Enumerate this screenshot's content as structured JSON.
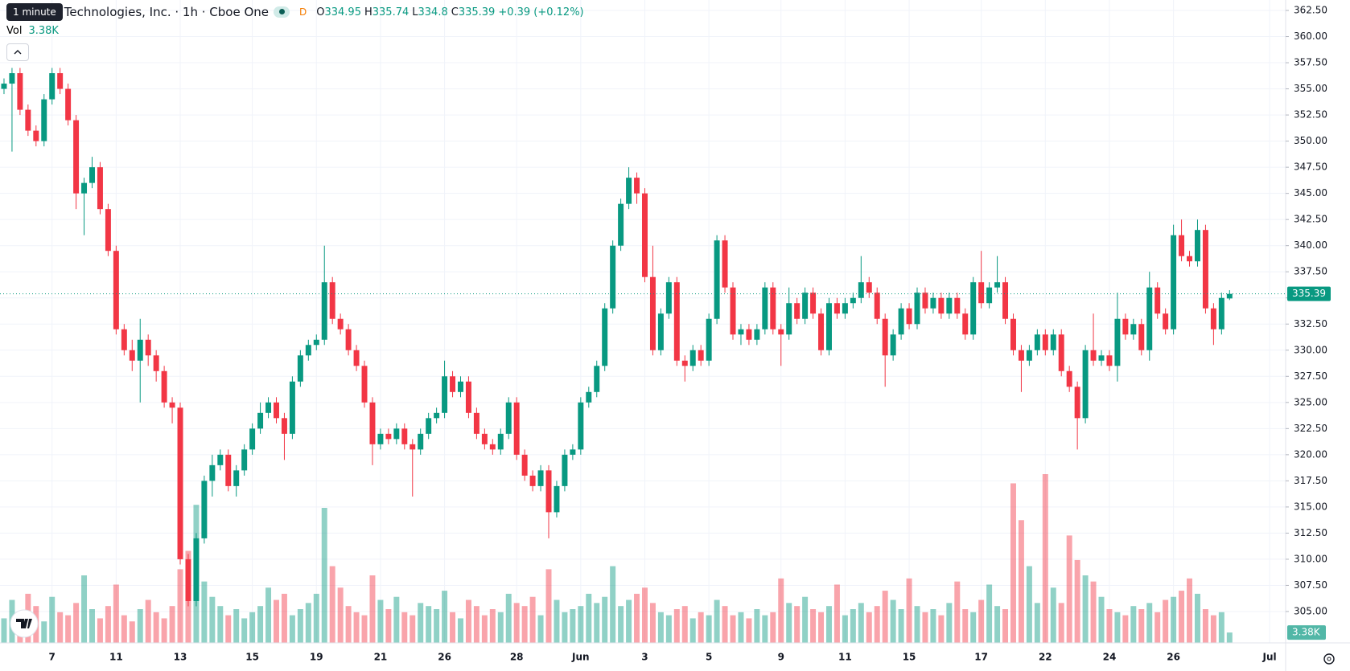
{
  "chart_data": {
    "type": "candlestick",
    "tooltip": "1 minute",
    "title": "Technologies, Inc. · 1h · Cboe One",
    "flag": "D",
    "ohlc_labels": [
      "O",
      "H",
      "L",
      "C"
    ],
    "change": "+0.39 (+0.12%)",
    "volume_name": "Vol",
    "last_volume_label": "3.38K",
    "up_color": "#089981",
    "down_color": "#f23645",
    "grid": true,
    "xlim": [
      -0.5,
      160
    ],
    "ylim": [
      302,
      363.5
    ],
    "xticks": [
      {
        "value": 6,
        "label": "7"
      },
      {
        "value": 14,
        "label": "11"
      },
      {
        "value": 22,
        "label": "13"
      },
      {
        "value": 31,
        "label": "15"
      },
      {
        "value": 39,
        "label": "19"
      },
      {
        "value": 47,
        "label": "21"
      },
      {
        "value": 55,
        "label": "26"
      },
      {
        "value": 64,
        "label": "28"
      },
      {
        "value": 72,
        "label": "Jun"
      },
      {
        "value": 80,
        "label": "3"
      },
      {
        "value": 88,
        "label": "5"
      },
      {
        "value": 97,
        "label": "9"
      },
      {
        "value": 105,
        "label": "11"
      },
      {
        "value": 113,
        "label": "15"
      },
      {
        "value": 122,
        "label": "17"
      },
      {
        "value": 130,
        "label": "22"
      },
      {
        "value": 138,
        "label": "24"
      },
      {
        "value": 146,
        "label": "26"
      },
      {
        "value": 158,
        "label": "Jul"
      }
    ],
    "yticks": [
      {
        "value": 305,
        "label": "305.00"
      },
      {
        "value": 307.5,
        "label": "307.50"
      },
      {
        "value": 310,
        "label": "310.00"
      },
      {
        "value": 312.5,
        "label": "312.50"
      },
      {
        "value": 315,
        "label": "315.00"
      },
      {
        "value": 317.5,
        "label": "317.50"
      },
      {
        "value": 320,
        "label": "320.00"
      },
      {
        "value": 322.5,
        "label": "322.50"
      },
      {
        "value": 325,
        "label": "325.00"
      },
      {
        "value": 327.5,
        "label": "327.50"
      },
      {
        "value": 330,
        "label": "330.00"
      },
      {
        "value": 332.5,
        "label": "332.50"
      },
      {
        "value": 335,
        "label": "335.00"
      },
      {
        "value": 337.5,
        "label": "337.50"
      },
      {
        "value": 340,
        "label": "340.00"
      },
      {
        "value": 342.5,
        "label": "342.50"
      },
      {
        "value": 345,
        "label": "345.00"
      },
      {
        "value": 347.5,
        "label": "347.50"
      },
      {
        "value": 350,
        "label": "350.00"
      },
      {
        "value": 352.5,
        "label": "352.50"
      },
      {
        "value": 355,
        "label": "355.00"
      },
      {
        "value": 357.5,
        "label": "357.50"
      },
      {
        "value": 360,
        "label": "360.00"
      },
      {
        "value": 362.5,
        "label": "362.50"
      }
    ],
    "open": [
      355,
      355.5,
      356.5,
      353,
      351,
      350,
      354,
      356.5,
      355,
      352,
      345,
      346,
      347.5,
      343.5,
      339.5,
      332,
      330,
      329,
      331,
      329.5,
      328,
      325,
      324.5,
      310,
      306,
      312,
      317.5,
      319,
      320,
      317,
      318.5,
      320.5,
      322.5,
      324,
      325,
      323.5,
      322,
      327,
      329.5,
      330.5,
      331,
      336.5,
      333,
      332,
      330,
      328.5,
      325,
      321,
      322,
      321.5,
      322.5,
      321,
      320.5,
      322,
      323.5,
      324,
      327.5,
      326,
      327,
      324,
      322,
      321,
      320.5,
      322,
      325,
      320,
      318,
      317,
      318.5,
      314.5,
      317,
      320,
      320.5,
      325,
      326,
      328.5,
      334,
      340,
      344,
      346.5,
      345,
      337,
      330,
      333.5,
      336.5,
      329,
      328.5,
      330,
      329,
      333,
      340.5,
      336,
      331.5,
      332,
      331,
      332,
      336,
      332,
      331.5,
      334.5,
      333,
      335.5,
      333.5,
      330,
      334.5,
      333.5,
      334.5,
      335,
      336.5,
      335.5,
      333,
      329.5,
      331.5,
      334,
      332.5,
      335.5,
      334,
      335,
      333.5,
      335,
      333.5,
      331.5,
      336.5,
      334.5,
      336,
      336.5,
      333,
      330,
      329,
      330,
      331.5,
      330,
      331.5,
      328,
      326.5,
      323.5,
      330,
      329,
      329.5,
      328.5,
      333,
      331.5,
      332.5,
      330,
      336,
      333.5,
      332,
      341,
      339,
      338.5,
      341.5,
      334,
      332,
      334.95
    ],
    "high": [
      356,
      357,
      357,
      353.5,
      351.5,
      354.5,
      357,
      357,
      355.5,
      352.5,
      346.5,
      348.5,
      348,
      344,
      340,
      332.5,
      331,
      333,
      331.5,
      330,
      328.5,
      325.5,
      325,
      310.5,
      312.5,
      318,
      320,
      320.5,
      320.5,
      319,
      321,
      323,
      325,
      325.5,
      325.5,
      324,
      327.5,
      330,
      331,
      331.5,
      340,
      337,
      333.5,
      332.5,
      330.5,
      329,
      325.5,
      322.5,
      322.5,
      323,
      323,
      321.5,
      322.5,
      324,
      324.5,
      329,
      328,
      327.5,
      327.5,
      324.5,
      322.5,
      321.5,
      322.5,
      325.5,
      325.5,
      320.5,
      318.5,
      319,
      319,
      317.5,
      320.5,
      321,
      325.5,
      326.5,
      329,
      334.5,
      340.5,
      344.5,
      347.5,
      347,
      345.5,
      340,
      334,
      337,
      337,
      329.5,
      330.5,
      330.5,
      333.5,
      341,
      341,
      336.5,
      332.5,
      332.5,
      332.5,
      336.5,
      336.5,
      332.5,
      336,
      335,
      336,
      336,
      334,
      335,
      335,
      335,
      335.5,
      339,
      337,
      336,
      333.5,
      332,
      334.5,
      334.5,
      336,
      336,
      335.5,
      335.5,
      335.5,
      335.5,
      334,
      337,
      339.5,
      336.5,
      339,
      337,
      333.5,
      330.5,
      330.5,
      332,
      332,
      332,
      332,
      328.5,
      327,
      330.5,
      333.5,
      330,
      330,
      335.5,
      333.5,
      333,
      333,
      337.5,
      336.5,
      334,
      342,
      342.5,
      339.5,
      342.5,
      342,
      334.5,
      335.5,
      335.74
    ],
    "low": [
      354.5,
      349,
      352.5,
      350.5,
      349.5,
      349.5,
      353.5,
      354.5,
      351.5,
      343.5,
      341,
      345.5,
      343,
      339,
      331.5,
      329.5,
      328,
      325,
      328.5,
      327,
      324.5,
      323,
      309.5,
      305.5,
      305.5,
      311.5,
      316,
      318.5,
      316.5,
      316,
      318,
      320,
      322,
      323.5,
      323,
      319.5,
      321.5,
      326.5,
      329,
      330,
      330.5,
      332.5,
      331.5,
      329.5,
      328,
      324.5,
      319,
      320.5,
      321,
      321,
      320.5,
      316,
      320,
      321.5,
      323,
      323.5,
      325.5,
      325.5,
      323.5,
      321.5,
      320.5,
      320,
      320,
      321.5,
      319.5,
      317.5,
      316.5,
      316.5,
      312,
      314,
      316.5,
      319.5,
      320,
      324.5,
      325.5,
      328,
      333.5,
      339.5,
      343.5,
      344,
      336.5,
      329.5,
      329.5,
      333,
      328.5,
      327,
      328,
      328.5,
      328.5,
      332.5,
      335.5,
      331,
      330.5,
      330.5,
      330.5,
      331.5,
      331.5,
      328.5,
      331,
      332.5,
      332.5,
      333,
      329.5,
      329.5,
      333,
      333,
      334,
      334.5,
      335,
      332.5,
      326.5,
      329,
      331,
      332,
      332,
      333.5,
      333.5,
      333,
      333,
      333,
      331,
      331,
      334,
      334,
      335.5,
      332.5,
      329.5,
      326,
      328.5,
      329.5,
      329.5,
      329.5,
      327.5,
      326,
      320.5,
      323,
      328.5,
      328.5,
      328,
      327,
      331,
      331,
      329.5,
      329,
      333,
      331.5,
      331.5,
      338.5,
      338,
      338,
      333.5,
      330.5,
      331.5,
      334.8
    ],
    "close": [
      355.5,
      356.5,
      353,
      351,
      350,
      354,
      356.5,
      355,
      352,
      345,
      346,
      347.5,
      343.5,
      339.5,
      332,
      330,
      329,
      331,
      329.5,
      328,
      325,
      324.5,
      310,
      306,
      312,
      317.5,
      319,
      320,
      317,
      318.5,
      320.5,
      322.5,
      324,
      325,
      323.5,
      322,
      327,
      329.5,
      330.5,
      331,
      336.5,
      333,
      332,
      330,
      328.5,
      325,
      321,
      322,
      321.5,
      322.5,
      321,
      320.5,
      322,
      323.5,
      324,
      327.5,
      326,
      327,
      324,
      322,
      321,
      320.5,
      322,
      325,
      320,
      318,
      317,
      318.5,
      314.5,
      317,
      320,
      320.5,
      325,
      326,
      328.5,
      334,
      340,
      344,
      346.5,
      345,
      337,
      330,
      333.5,
      336.5,
      329,
      328.5,
      330,
      329,
      333,
      340.5,
      336,
      331.5,
      332,
      331,
      332,
      336,
      332,
      331.5,
      334.5,
      333,
      335.5,
      333.5,
      330,
      334.5,
      333.5,
      334.5,
      335,
      336.5,
      335.5,
      333,
      329.5,
      331.5,
      334,
      332.5,
      335.5,
      334,
      335,
      333.5,
      335,
      333.5,
      331.5,
      336.5,
      334.5,
      336,
      336.5,
      333,
      330,
      329,
      330,
      331.5,
      330,
      331.5,
      328,
      326.5,
      323.5,
      330,
      329,
      329.5,
      328.5,
      333,
      331.5,
      332.5,
      330,
      336,
      333.5,
      332,
      341,
      339,
      338.5,
      341.5,
      334,
      332,
      335,
      335.39
    ],
    "volume": [
      8000,
      14000,
      9000,
      16000,
      12000,
      7000,
      15000,
      10000,
      9000,
      13000,
      22000,
      11000,
      8000,
      12000,
      19000,
      9000,
      7000,
      11000,
      14000,
      10000,
      8000,
      12000,
      24000,
      30000,
      45000,
      20000,
      15000,
      12000,
      9000,
      11000,
      8000,
      10000,
      12000,
      18000,
      14000,
      16000,
      9000,
      11000,
      13000,
      16000,
      44000,
      25000,
      18000,
      12000,
      10000,
      9000,
      22000,
      14000,
      11000,
      15000,
      10000,
      9000,
      13000,
      12000,
      11000,
      17000,
      10000,
      8000,
      14000,
      12000,
      9000,
      11000,
      10000,
      16000,
      13000,
      12000,
      15000,
      9000,
      24000,
      14000,
      10000,
      11000,
      12000,
      16000,
      13000,
      15000,
      25000,
      12000,
      14000,
      16000,
      18000,
      13000,
      10000,
      9000,
      11000,
      12000,
      8000,
      10000,
      9000,
      14000,
      12000,
      9000,
      10000,
      8000,
      11000,
      9000,
      10000,
      21000,
      13000,
      12000,
      15000,
      11000,
      10000,
      12000,
      19000,
      9000,
      11000,
      13000,
      10000,
      12000,
      17000,
      14000,
      11000,
      21000,
      12000,
      10000,
      11000,
      9000,
      13000,
      20000,
      11000,
      10000,
      14000,
      19000,
      12000,
      11000,
      52000,
      40000,
      25000,
      13000,
      55000,
      18000,
      13000,
      35000,
      27000,
      22000,
      20000,
      15000,
      11000,
      10000,
      9000,
      12000,
      11000,
      13000,
      10000,
      14000,
      15000,
      17000,
      21000,
      16000,
      11000,
      9000,
      10000,
      3380
    ]
  }
}
